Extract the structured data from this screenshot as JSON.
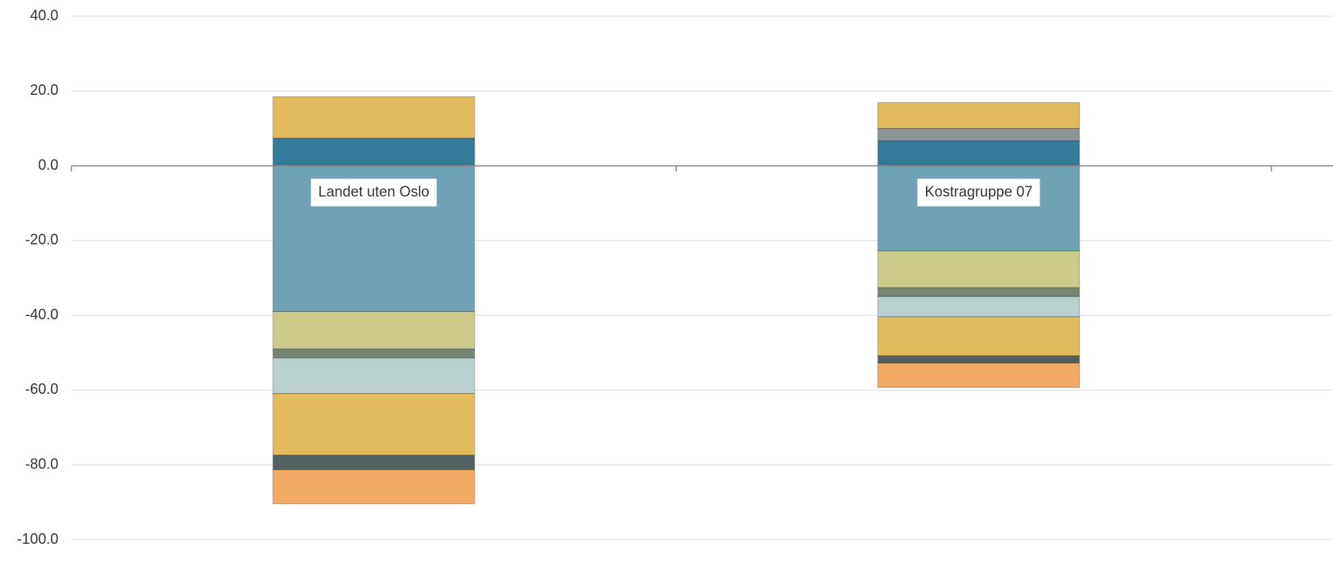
{
  "chart_data": {
    "type": "stacked_bar",
    "categories": [
      "Landet uten Oslo",
      "Kostragruppe 07"
    ],
    "series": [
      {
        "color": "#347b9b",
        "values": [
          7.4,
          6.7
        ]
      },
      {
        "color": "#8e9596",
        "values": [
          0,
          3.3
        ]
      },
      {
        "color": "#e3bb5f",
        "values": [
          11.1,
          6.9
        ]
      },
      {
        "color": "#6fa2b4",
        "values": [
          -39.0,
          -22.8
        ]
      },
      {
        "color": "#cccb8c",
        "values": [
          -10.0,
          -9.8
        ]
      },
      {
        "color": "#768574",
        "values": [
          -2.4,
          -2.4
        ]
      },
      {
        "color": "#bad0cf",
        "values": [
          -9.5,
          -5.4
        ]
      },
      {
        "color": "#e3bb5f",
        "values": [
          -16.5,
          -10.4
        ]
      },
      {
        "color": "#526260",
        "values": [
          -3.9,
          -2.0
        ]
      },
      {
        "color": "#f2aa65",
        "values": [
          -9.1,
          -6.5
        ]
      }
    ],
    "ylim": [
      -100,
      40
    ],
    "yticks": [
      {
        "value": 40,
        "label": "40.0"
      },
      {
        "value": 20,
        "label": "20.0"
      },
      {
        "value": 0,
        "label": "0.0"
      },
      {
        "value": -20,
        "label": "-20.0"
      },
      {
        "value": -40,
        "label": "-40.0"
      },
      {
        "value": -60,
        "label": "-60.0"
      },
      {
        "value": -80,
        "label": "-80.0"
      },
      {
        "value": -100,
        "label": "-100.0"
      }
    ],
    "grid": true
  }
}
